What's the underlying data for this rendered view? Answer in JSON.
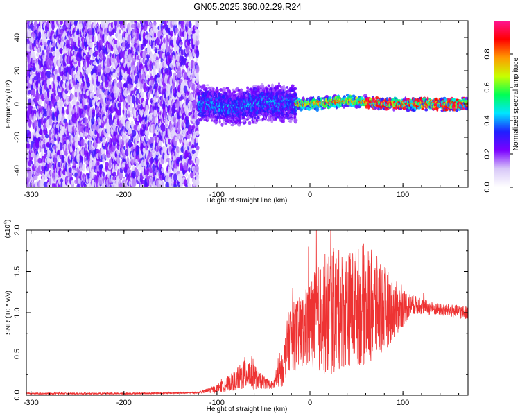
{
  "title": "GN05.2025.360.02.29.R24",
  "chart_data": [
    {
      "type": "heatmap",
      "xlabel": "Height of straight line (km)",
      "ylabel": "Frequency (Hz)",
      "xlim": [
        -305,
        170
      ],
      "ylim": [
        -50,
        50
      ],
      "x_ticks": [
        -300,
        -200,
        -100,
        0,
        100
      ],
      "y_ticks": [
        -40,
        -20,
        0,
        20,
        40
      ],
      "colorbar": {
        "label": "Normalized spectral amplitude",
        "range": [
          0.0,
          1.0
        ],
        "ticks": [
          "0.0",
          "0.2",
          "0.4",
          "0.6",
          "0.8"
        ],
        "tick_values": [
          0.0,
          0.2,
          0.4,
          0.6,
          0.8
        ],
        "colors": [
          "#ffffff",
          "#d8c8f8",
          "#7b00ff",
          "#1f1fff",
          "#00e5ff",
          "#00ff55",
          "#c8ff00",
          "#ff9a00",
          "#ff0000",
          "#ff1493"
        ]
      },
      "bands": [
        {
          "x_range": [
            -305,
            -120
          ],
          "freq_halfwidth": 50,
          "amplitude": [
            0.05,
            0.25
          ]
        },
        {
          "x_range": [
            -120,
            -15
          ],
          "freq_halfwidth": 12,
          "amplitude": [
            0.15,
            0.45
          ]
        },
        {
          "x_range": [
            -15,
            170
          ],
          "freq_halfwidth": 4,
          "amplitude": [
            0.3,
            1.0
          ]
        }
      ],
      "ridge": [
        [
          -110,
          0
        ],
        [
          -80,
          -2
        ],
        [
          -50,
          1
        ],
        [
          -20,
          0
        ],
        [
          0,
          0
        ],
        [
          20,
          1
        ],
        [
          40,
          2
        ],
        [
          60,
          1
        ],
        [
          80,
          0
        ],
        [
          100,
          0
        ],
        [
          120,
          0
        ],
        [
          150,
          0
        ],
        [
          170,
          0
        ]
      ]
    },
    {
      "type": "line",
      "xlabel": "Height of straight line (km)",
      "ylabel": "SNR (10 * v/v)",
      "y_multiplier": "(x10",
      "y_multiplier_exp": "4",
      "y_multiplier_close": ")",
      "xlim": [
        -305,
        170
      ],
      "ylim": [
        0,
        2.0
      ],
      "x_ticks": [
        -300,
        -200,
        -100,
        0,
        100
      ],
      "y_ticks": [
        0.0,
        0.5,
        1.0,
        1.5,
        2.0
      ],
      "y_tick_labels": [
        "0.0",
        "0.5",
        "1.0",
        "1.5",
        "2.0"
      ],
      "color": "#ee3333",
      "envelope": [
        {
          "x": -305,
          "mean": 0.02,
          "noise": 0.01
        },
        {
          "x": -200,
          "mean": 0.02,
          "noise": 0.01
        },
        {
          "x": -120,
          "mean": 0.03,
          "noise": 0.01
        },
        {
          "x": -100,
          "mean": 0.08,
          "noise": 0.05
        },
        {
          "x": -80,
          "mean": 0.18,
          "noise": 0.12
        },
        {
          "x": -65,
          "mean": 0.3,
          "noise": 0.25
        },
        {
          "x": -55,
          "mean": 0.18,
          "noise": 0.1
        },
        {
          "x": -40,
          "mean": 0.12,
          "noise": 0.05
        },
        {
          "x": -30,
          "mean": 0.3,
          "noise": 0.2
        },
        {
          "x": -22,
          "mean": 0.7,
          "noise": 0.4
        },
        {
          "x": -10,
          "mean": 0.75,
          "noise": 0.45
        },
        {
          "x": 5,
          "mean": 0.9,
          "noise": 0.6
        },
        {
          "x": 20,
          "mean": 1.0,
          "noise": 0.8
        },
        {
          "x": 40,
          "mean": 1.05,
          "noise": 0.7
        },
        {
          "x": 60,
          "mean": 1.1,
          "noise": 0.75
        },
        {
          "x": 75,
          "mean": 1.05,
          "noise": 0.6
        },
        {
          "x": 95,
          "mean": 1.05,
          "noise": 0.3
        },
        {
          "x": 110,
          "mean": 1.1,
          "noise": 0.12
        },
        {
          "x": 130,
          "mean": 1.05,
          "noise": 0.08
        },
        {
          "x": 170,
          "mean": 1.0,
          "noise": 0.08
        }
      ]
    }
  ]
}
